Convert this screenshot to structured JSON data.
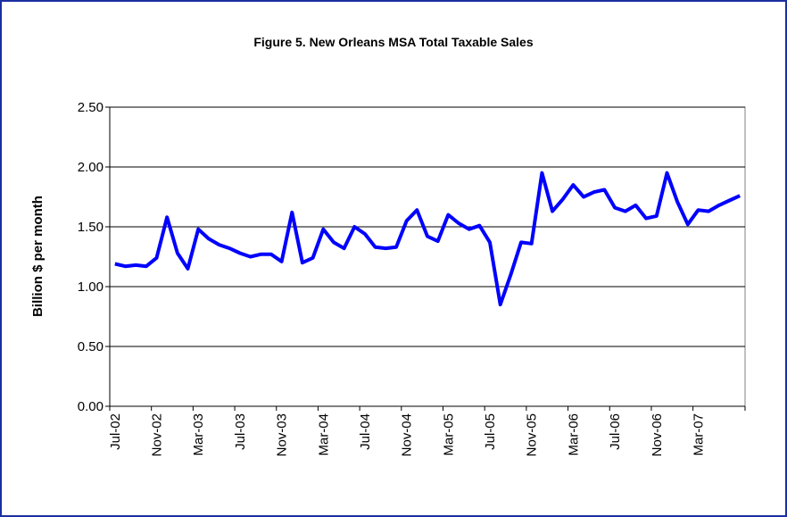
{
  "chart_data": {
    "type": "line",
    "title": "Figure 5. New Orleans MSA Total Taxable Sales",
    "y_label": "Billion $ per month",
    "categories": [
      "Jul-02",
      null,
      null,
      null,
      "Nov-02",
      null,
      null,
      null,
      "Mar-03",
      null,
      null,
      null,
      "Jul-03",
      null,
      null,
      null,
      "Nov-03",
      null,
      null,
      null,
      "Mar-04",
      null,
      null,
      null,
      "Jul-04",
      null,
      null,
      null,
      "Nov-04",
      null,
      null,
      null,
      "Mar-05",
      null,
      null,
      null,
      "Jul-05",
      null,
      null,
      null,
      "Nov-05",
      null,
      null,
      null,
      "Mar-06",
      null,
      null,
      null,
      "Jul-06",
      null,
      null,
      null,
      "Nov-06",
      null,
      null,
      null,
      "Mar-07",
      null,
      null,
      null,
      null
    ],
    "series": [
      {
        "color": "#0000ff",
        "values": [
          1.19,
          1.17,
          1.18,
          1.17,
          1.24,
          1.58,
          1.28,
          1.15,
          1.48,
          1.4,
          1.35,
          1.32,
          1.28,
          1.25,
          1.27,
          1.27,
          1.21,
          1.62,
          1.2,
          1.24,
          1.48,
          1.37,
          1.32,
          1.5,
          1.44,
          1.33,
          1.32,
          1.33,
          1.55,
          1.64,
          1.42,
          1.38,
          1.6,
          1.53,
          1.48,
          1.51,
          1.37,
          0.85,
          1.1,
          1.37,
          1.36,
          1.95,
          1.63,
          1.73,
          1.85,
          1.75,
          1.79,
          1.81,
          1.66,
          1.63,
          1.68,
          1.57,
          1.59,
          1.95,
          1.71,
          1.52,
          1.64,
          1.63,
          1.68,
          1.72,
          1.76
        ]
      }
    ],
    "ylim": [
      0,
      2.5
    ],
    "yticks": [
      {
        "value": 0,
        "label": "0.00"
      },
      {
        "value": 0.5,
        "label": "0.50"
      },
      {
        "value": 1,
        "label": "1.00"
      },
      {
        "value": 1.5,
        "label": "1.50"
      },
      {
        "value": 2,
        "label": "2.00"
      },
      {
        "value": 2.5,
        "label": "2.50"
      }
    ],
    "grid": true
  }
}
